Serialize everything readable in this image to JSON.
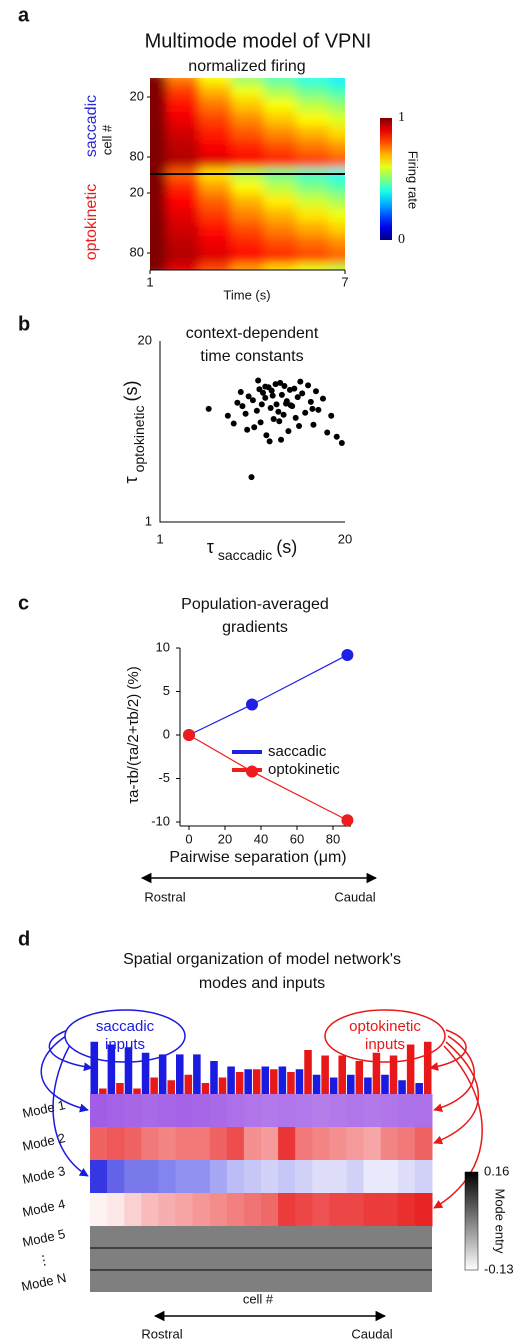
{
  "chart_data": [
    {
      "type": "heatmap",
      "panel": "a",
      "title": "Multimode model of VPNI",
      "subtitle": "normalized firing",
      "x": [
        1,
        2,
        3,
        4,
        5,
        6,
        7
      ],
      "xlim": [
        1,
        7
      ],
      "xticks": [
        1,
        7
      ],
      "xlabel": "Time (s)",
      "ylabel": "cell #",
      "ylim": [
        1,
        97
      ],
      "rows": [
        1,
        14,
        28,
        42,
        56,
        70,
        84,
        97
      ],
      "colormap": "jet",
      "blocks": [
        {
          "name": "saccadic",
          "color": "#2a2ad8",
          "yticks": [
            20,
            80
          ],
          "values": [
            [
              1,
              0.75,
              0.62,
              0.52,
              0.45,
              0.4,
              0.36
            ],
            [
              1,
              0.82,
              0.7,
              0.61,
              0.54,
              0.48,
              0.44
            ],
            [
              1,
              0.86,
              0.76,
              0.68,
              0.62,
              0.56,
              0.52
            ],
            [
              1,
              0.89,
              0.81,
              0.74,
              0.68,
              0.63,
              0.59
            ],
            [
              1,
              0.92,
              0.85,
              0.79,
              0.74,
              0.7,
              0.66
            ],
            [
              1,
              0.94,
              0.88,
              0.84,
              0.8,
              0.76,
              0.73
            ],
            [
              1,
              0.95,
              0.91,
              0.88,
              0.85,
              0.82,
              0.79
            ],
            [
              1,
              0.97,
              0.94,
              0.92,
              0.9,
              0.88,
              0.86
            ]
          ]
        },
        {
          "name": "optokinetic",
          "color": "#e81c1c",
          "yticks": [
            20,
            80
          ],
          "values": [
            [
              1,
              0.78,
              0.65,
              0.55,
              0.48,
              0.43,
              0.39
            ],
            [
              1,
              0.84,
              0.72,
              0.63,
              0.56,
              0.5,
              0.46
            ],
            [
              1,
              0.87,
              0.78,
              0.7,
              0.64,
              0.58,
              0.54
            ],
            [
              1,
              0.9,
              0.82,
              0.75,
              0.7,
              0.65,
              0.61
            ],
            [
              1,
              0.92,
              0.86,
              0.8,
              0.75,
              0.71,
              0.67
            ],
            [
              1,
              0.94,
              0.89,
              0.84,
              0.8,
              0.77,
              0.74
            ],
            [
              1,
              0.95,
              0.91,
              0.87,
              0.84,
              0.81,
              0.78
            ],
            [
              1,
              0.9,
              0.8,
              0.72,
              0.66,
              0.6,
              0.56
            ]
          ]
        }
      ],
      "colorbar": {
        "label": "Firing rate",
        "lim": [
          0,
          1
        ],
        "ticks": [
          0,
          1
        ]
      }
    },
    {
      "type": "scatter",
      "panel": "b",
      "title": [
        "context-dependent",
        "time constants"
      ],
      "color": "#000000",
      "log_scale": true,
      "x": [
        2.2,
        3.0,
        3.5,
        3.8,
        4.0,
        4.2,
        4.5,
        4.6,
        4.8,
        5.0,
        5.1,
        5.3,
        5.5,
        5.6,
        5.8,
        6.0,
        6.1,
        6.3,
        6.5,
        6.6,
        6.8,
        7.0,
        7.2,
        7.4,
        7.5,
        7.8,
        8.0,
        8.2,
        8.5,
        8.8,
        9.0,
        9.3,
        9.5,
        10,
        10.5,
        11,
        11.5,
        12,
        12.5,
        13,
        14,
        15,
        16,
        17.5,
        19,
        3.3,
        4.1,
        5.2,
        6.2,
        7.1,
        8.3,
        9.7,
        4.4,
        5.9,
        6.9,
        3.7,
        11.8,
        5.5,
        4.9,
        7.7
      ],
      "y": [
        6.5,
        5.8,
        7.2,
        6.8,
        6.0,
        8.0,
        7.5,
        4.8,
        6.3,
        9.0,
        5.2,
        8.5,
        7.8,
        4.2,
        9.3,
        6.6,
        8.8,
        5.5,
        9.8,
        7.0,
        6.2,
        10.0,
        8.2,
        5.9,
        9.5,
        7.4,
        4.5,
        8.9,
        6.8,
        9.1,
        5.6,
        7.9,
        4.9,
        8.4,
        6.1,
        9.6,
        7.3,
        5.0,
        8.7,
        6.4,
        7.7,
        4.4,
        5.8,
        4.1,
        3.7,
        5.1,
        4.6,
        7.0,
        8.1,
        3.9,
        6.9,
        10.2,
        2.1,
        3.8,
        5.3,
        8.6,
        6.5,
        9.4,
        10.4,
        7.1
      ],
      "xlim": [
        1,
        20
      ],
      "ylim": [
        1,
        20
      ],
      "xticks": [
        1,
        20
      ],
      "yticks": [
        1,
        20
      ],
      "xlabel": {
        "symbol": "τ",
        "subscript": "saccadic",
        "unit": "(s)"
      },
      "ylabel": {
        "symbol": "τ",
        "subscript": "optokinetic",
        "unit": "(s)"
      }
    },
    {
      "type": "line",
      "panel": "c",
      "title": [
        "Population-averaged",
        "gradients"
      ],
      "x": [
        0,
        35,
        88
      ],
      "series": [
        {
          "name": "saccadic",
          "color": "#1f1fe6",
          "values": [
            0,
            3.5,
            9.2
          ]
        },
        {
          "name": "optokinetic",
          "color": "#ee1c1c",
          "values": [
            0,
            -4.2,
            -9.8
          ]
        }
      ],
      "xlim": [
        -5,
        90
      ],
      "ylim": [
        -10,
        10
      ],
      "xticks": [
        0,
        20,
        40,
        60,
        80
      ],
      "yticks": [
        -10,
        -5,
        0,
        5,
        10
      ],
      "xlabel": "Pairwise separation (μm)",
      "ylabel": "τa-τb/(τa/2+τb/2) (%)",
      "direction": [
        "Rostral",
        "Caudal"
      ],
      "legend": "center right"
    },
    {
      "type": "modes",
      "panel": "d",
      "title": [
        "Spatial organization of model network's",
        "modes and inputs"
      ],
      "inputs": [
        {
          "name": [
            "saccadic",
            "inputs"
          ],
          "color": "#1a1ae0",
          "values": [
            0.95,
            0.9,
            0.85,
            0.75,
            0.72,
            0.72,
            0.72,
            0.6,
            0.5,
            0.45,
            0.5,
            0.5,
            0.45,
            0.35,
            0.3,
            0.35,
            0.3,
            0.35,
            0.25,
            0.2
          ]
        },
        {
          "name": [
            "optokinetic",
            "inputs"
          ],
          "color": "#e81818",
          "values": [
            0.1,
            0.2,
            0.1,
            0.3,
            0.25,
            0.35,
            0.2,
            0.3,
            0.4,
            0.45,
            0.45,
            0.4,
            0.8,
            0.7,
            0.7,
            0.6,
            0.75,
            0.7,
            0.9,
            0.95
          ]
        }
      ],
      "modes": [
        {
          "label": "Mode 1",
          "color": "#9040e0",
          "values": [
            0.85,
            0.82,
            0.8,
            0.78,
            0.8,
            0.82,
            0.8,
            0.78,
            0.75,
            0.72,
            0.7,
            0.72,
            0.7,
            0.68,
            0.7,
            0.72,
            0.7,
            0.72,
            0.74,
            0.75
          ]
        },
        {
          "label": "Mode 2",
          "color": "#e82020",
          "values": [
            0.7,
            0.75,
            0.7,
            0.6,
            0.55,
            0.6,
            0.6,
            0.7,
            0.8,
            0.5,
            0.45,
            0.9,
            0.6,
            0.55,
            0.5,
            0.45,
            0.4,
            0.55,
            0.6,
            0.7
          ]
        },
        {
          "label": "Mode 3",
          "color": "#2020e0",
          "values": [
            0.9,
            0.7,
            0.6,
            0.6,
            0.55,
            0.5,
            0.5,
            0.4,
            0.3,
            0.25,
            0.2,
            0.25,
            0.2,
            0.15,
            0.15,
            0.2,
            0.1,
            0.1,
            0.15,
            0.2
          ]
        },
        {
          "label": "Mode 4",
          "color": "#e81818",
          "values": [
            0.05,
            0.1,
            0.2,
            0.3,
            0.35,
            0.4,
            0.45,
            0.5,
            0.55,
            0.6,
            0.65,
            0.85,
            0.8,
            0.75,
            0.8,
            0.8,
            0.85,
            0.85,
            0.9,
            0.95
          ]
        }
      ],
      "other_modes": [
        "Mode 5",
        "⋮",
        "Mode N"
      ],
      "xlabel": "cell #",
      "direction": [
        "Rostral",
        "Caudal"
      ],
      "colorbar": {
        "label": "Mode entry",
        "lim": [
          -0.13,
          0.16
        ],
        "ticks": [
          -0.13,
          0.16
        ]
      }
    }
  ]
}
